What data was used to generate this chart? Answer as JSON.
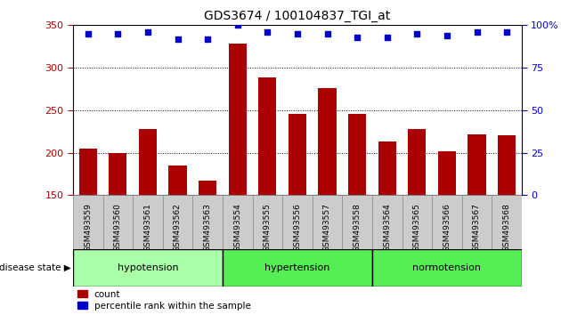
{
  "title": "GDS3674 / 100104837_TGI_at",
  "samples": [
    "GSM493559",
    "GSM493560",
    "GSM493561",
    "GSM493562",
    "GSM493563",
    "GSM493554",
    "GSM493555",
    "GSM493556",
    "GSM493557",
    "GSM493558",
    "GSM493564",
    "GSM493565",
    "GSM493566",
    "GSM493567",
    "GSM493568"
  ],
  "counts": [
    205,
    200,
    228,
    185,
    167,
    328,
    289,
    246,
    276,
    246,
    213,
    228,
    202,
    222,
    221
  ],
  "percentiles": [
    95,
    95,
    96,
    92,
    92,
    100,
    96,
    95,
    95,
    93,
    93,
    95,
    94,
    96,
    96
  ],
  "bar_color": "#AA0000",
  "dot_color": "#0000CC",
  "ylim_left": [
    150,
    350
  ],
  "ylim_right": [
    0,
    100
  ],
  "yticks_left": [
    150,
    200,
    250,
    300,
    350
  ],
  "yticks_right": [
    0,
    25,
    50,
    75,
    100
  ],
  "groups": [
    {
      "label": "hypotension",
      "start": 0,
      "end": 5
    },
    {
      "label": "hypertension",
      "start": 5,
      "end": 10
    },
    {
      "label": "normotension",
      "start": 10,
      "end": 15
    }
  ],
  "group_colors": [
    "#AAFFAA",
    "#55DD55",
    "#55DD55"
  ],
  "group_label_prefix": "disease state",
  "legend_count_label": "count",
  "legend_pct_label": "percentile rank within the sample",
  "tick_label_bg": "#CCCCCC",
  "tick_label_fg": "#000000"
}
